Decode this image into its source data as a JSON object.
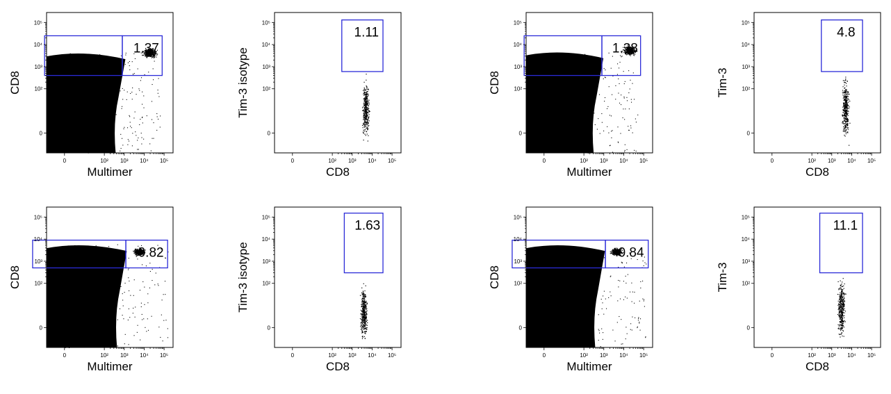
{
  "chart_data": [
    {
      "type": "scatter",
      "xlabel": "Multimer",
      "ylabel": "CD8",
      "x_scale": "biexponential",
      "y_scale": "biexponential",
      "x_ticks": [
        "0",
        "10²",
        "10³",
        "10⁴",
        "10⁵"
      ],
      "y_ticks": [
        "0",
        "10²",
        "10³",
        "10⁴",
        "10⁵"
      ],
      "gates": [
        {
          "x": [
            -50,
            800
          ],
          "y": [
            400,
            25000
          ]
        },
        {
          "x": [
            800,
            80000
          ],
          "y": [
            400,
            25000
          ],
          "label": "1.37"
        }
      ],
      "populations": [
        {
          "x": [
            -200,
            600
          ],
          "y": [
            -100,
            4500
          ],
          "density": "saturated"
        },
        {
          "x": [
            5000,
            70000
          ],
          "y": [
            2000,
            9000
          ],
          "density": "sparse"
        }
      ]
    },
    {
      "type": "scatter",
      "xlabel": "CD8",
      "ylabel": "Tim-3 isotype",
      "x_scale": "biexponential",
      "y_scale": "biexponential",
      "x_ticks": [
        "0",
        "10²",
        "10³",
        "10⁴",
        "10⁵"
      ],
      "y_ticks": [
        "0",
        "10²",
        "10³",
        "10⁴",
        "10⁵"
      ],
      "gates": [
        {
          "x": [
            300,
            35000
          ],
          "y": [
            600,
            130000
          ],
          "label": "1.11"
        }
      ],
      "populations": [
        {
          "x": [
            2500,
            9000
          ],
          "y": [
            -50,
            1500
          ],
          "density": "sparse"
        }
      ]
    },
    {
      "type": "scatter",
      "xlabel": "Multimer",
      "ylabel": "CD8",
      "x_scale": "biexponential",
      "y_scale": "biexponential",
      "x_ticks": [
        "0",
        "10²",
        "10³",
        "10⁴",
        "10⁵"
      ],
      "y_ticks": [
        "0",
        "10²",
        "10³",
        "10⁴",
        "10⁵"
      ],
      "gates": [
        {
          "x": [
            -50,
            800
          ],
          "y": [
            400,
            25000
          ]
        },
        {
          "x": [
            800,
            70000
          ],
          "y": [
            400,
            25000
          ],
          "label": "1.38"
        }
      ],
      "populations": [
        {
          "x": [
            -200,
            500
          ],
          "y": [
            -100,
            5000
          ],
          "density": "saturated"
        },
        {
          "x": [
            6000,
            60000
          ],
          "y": [
            2500,
            12000
          ],
          "density": "sparse"
        }
      ]
    },
    {
      "type": "scatter",
      "xlabel": "CD8",
      "ylabel": "Tim-3",
      "x_scale": "biexponential",
      "y_scale": "biexponential",
      "x_ticks": [
        "0",
        "10²",
        "10³",
        "10⁴",
        "10⁵"
      ],
      "y_ticks": [
        "0",
        "10²",
        "10³",
        "10⁴",
        "10⁵"
      ],
      "gates": [
        {
          "x": [
            300,
            35000
          ],
          "y": [
            600,
            130000
          ],
          "label": "4.8"
        }
      ],
      "populations": [
        {
          "x": [
            2500,
            9000
          ],
          "y": [
            -50,
            2000
          ],
          "density": "sparse"
        }
      ]
    },
    {
      "type": "scatter",
      "xlabel": "Multimer",
      "ylabel": "CD8",
      "x_scale": "biexponential",
      "y_scale": "biexponential",
      "x_ticks": [
        "0",
        "10²",
        "10³",
        "10⁴",
        "10⁵"
      ],
      "y_ticks": [
        "0",
        "10²",
        "10³",
        "10⁴",
        "10⁵"
      ],
      "gates": [
        {
          "x": [
            -80,
            1200
          ],
          "y": [
            500,
            9000
          ]
        },
        {
          "x": [
            1200,
            150000
          ],
          "y": [
            500,
            9000
          ],
          "label": "0.82"
        }
      ],
      "populations": [
        {
          "x": [
            -250,
            700
          ],
          "y": [
            -120,
            6000
          ],
          "density": "saturated"
        },
        {
          "x": [
            2000,
            15000
          ],
          "y": [
            1500,
            5000
          ],
          "density": "sparse"
        }
      ]
    },
    {
      "type": "scatter",
      "xlabel": "CD8",
      "ylabel": "Tim-3 isotype",
      "x_scale": "biexponential",
      "y_scale": "biexponential",
      "x_ticks": [
        "0",
        "10²",
        "10³",
        "10⁴",
        "10⁵"
      ],
      "y_ticks": [
        "0",
        "10²",
        "10³",
        "10⁴",
        "10⁵"
      ],
      "gates": [
        {
          "x": [
            400,
            35000
          ],
          "y": [
            300,
            150000
          ],
          "label": "1.63"
        }
      ],
      "populations": [
        {
          "x": [
            2000,
            7000
          ],
          "y": [
            -60,
            350
          ],
          "density": "sparse"
        }
      ]
    },
    {
      "type": "scatter",
      "xlabel": "Multimer",
      "ylabel": "CD8",
      "x_scale": "biexponential",
      "y_scale": "biexponential",
      "x_ticks": [
        "0",
        "10²",
        "10³",
        "10⁴",
        "10⁵"
      ],
      "y_ticks": [
        "0",
        "10²",
        "10³",
        "10⁴",
        "10⁵"
      ],
      "gates": [
        {
          "x": [
            -80,
            1200
          ],
          "y": [
            500,
            9000
          ]
        },
        {
          "x": [
            1200,
            170000
          ],
          "y": [
            500,
            9000
          ],
          "label": "0.84"
        }
      ],
      "populations": [
        {
          "x": [
            -250,
            600
          ],
          "y": [
            -120,
            6000
          ],
          "density": "saturated"
        },
        {
          "x": [
            1500,
            12000
          ],
          "y": [
            1500,
            5000
          ],
          "density": "sparse"
        }
      ]
    },
    {
      "type": "scatter",
      "xlabel": "CD8",
      "ylabel": "Tim-3",
      "x_scale": "biexponential",
      "y_scale": "biexponential",
      "x_ticks": [
        "0",
        "10²",
        "10³",
        "10⁴",
        "10⁵"
      ],
      "y_ticks": [
        "0",
        "10²",
        "10³",
        "10⁴",
        "10⁵"
      ],
      "gates": [
        {
          "x": [
            250,
            35000
          ],
          "y": [
            300,
            150000
          ],
          "label": "11.1"
        }
      ],
      "populations": [
        {
          "x": [
            1500,
            6000
          ],
          "y": [
            -60,
            900
          ],
          "density": "sparse"
        }
      ]
    }
  ]
}
